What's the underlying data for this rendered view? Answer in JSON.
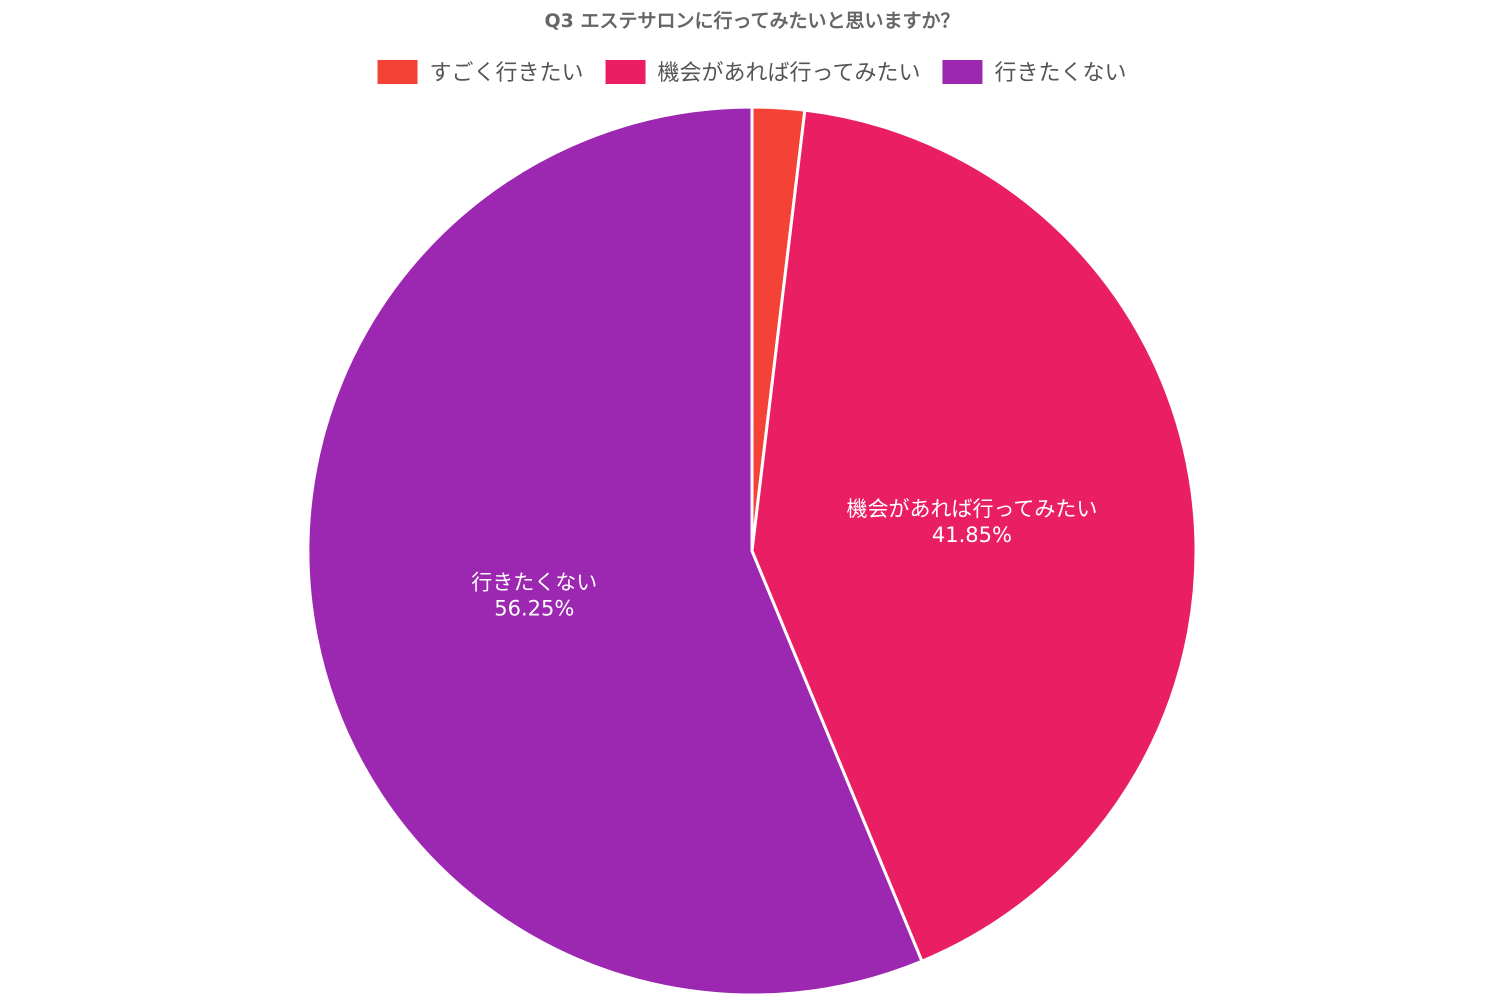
{
  "chart_data": {
    "type": "pie",
    "title": "Q3 エステサロンに行ってみたいと思いますか？",
    "categories": [
      "すごく行きたい",
      "機会があれば行ってみたい",
      "行きたくない"
    ],
    "values": [
      1.9,
      41.85,
      56.25
    ],
    "value_labels": [
      "",
      "41.85%",
      "56.25%"
    ],
    "colors": [
      "#f44336",
      "#e91e63",
      "#9c27b0"
    ],
    "legend_position": "top",
    "start_angle": "12 o'clock",
    "direction": "clockwise",
    "slice_border_color": "#ffffff"
  }
}
